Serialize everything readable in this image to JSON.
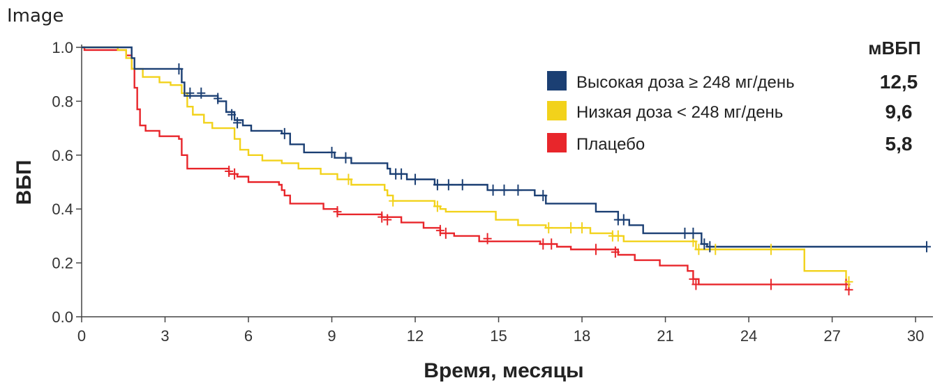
{
  "page_label": "Image",
  "chart_data": {
    "type": "line",
    "title": "",
    "xlabel": "Время, месяцы",
    "ylabel": "ВБП",
    "xlim": [
      0,
      30.5
    ],
    "ylim": [
      0,
      1.0
    ],
    "x_ticks": [
      0,
      3,
      6,
      9,
      12,
      15,
      18,
      21,
      24,
      27,
      30
    ],
    "y_ticks": [
      0.0,
      0.2,
      0.4,
      0.6,
      0.8,
      1.0
    ],
    "y_tick_labels": [
      "0.0",
      "0.2",
      "0.4",
      "0.6",
      "0.8",
      "1.0"
    ],
    "grid": false,
    "legend_header": "мВБП",
    "legend_position": "top-right",
    "series": [
      {
        "name": "Высокая доза ≥ 248 мг/день",
        "median": "12,5",
        "color": "#1b3f73",
        "steps": [
          [
            0,
            1.0
          ],
          [
            1.7,
            1.0
          ],
          [
            1.8,
            0.96
          ],
          [
            1.9,
            0.92
          ],
          [
            3.5,
            0.92
          ],
          [
            3.6,
            0.87
          ],
          [
            3.7,
            0.82
          ],
          [
            4.6,
            0.82
          ],
          [
            4.9,
            0.8
          ],
          [
            5.2,
            0.76
          ],
          [
            5.5,
            0.73
          ],
          [
            5.8,
            0.71
          ],
          [
            6.1,
            0.69
          ],
          [
            7.2,
            0.68
          ],
          [
            7.5,
            0.64
          ],
          [
            7.8,
            0.64
          ],
          [
            8.0,
            0.61
          ],
          [
            9.0,
            0.61
          ],
          [
            9.1,
            0.59
          ],
          [
            9.6,
            0.59
          ],
          [
            9.7,
            0.57
          ],
          [
            10.9,
            0.57
          ],
          [
            11.0,
            0.55
          ],
          [
            11.1,
            0.53
          ],
          [
            11.6,
            0.53
          ],
          [
            11.7,
            0.51
          ],
          [
            12.6,
            0.51
          ],
          [
            12.7,
            0.49
          ],
          [
            14.5,
            0.49
          ],
          [
            14.6,
            0.47
          ],
          [
            16.2,
            0.47
          ],
          [
            16.3,
            0.45
          ],
          [
            16.6,
            0.45
          ],
          [
            16.7,
            0.42
          ],
          [
            18.4,
            0.42
          ],
          [
            18.5,
            0.39
          ],
          [
            19.2,
            0.39
          ],
          [
            19.3,
            0.36
          ],
          [
            19.6,
            0.36
          ],
          [
            19.7,
            0.34
          ],
          [
            20.1,
            0.34
          ],
          [
            20.2,
            0.31
          ],
          [
            22.2,
            0.31
          ],
          [
            22.3,
            0.27
          ],
          [
            22.5,
            0.26
          ],
          [
            30.4,
            0.26
          ]
        ],
        "censors": [
          [
            3.5,
            0.92
          ],
          [
            3.9,
            0.83
          ],
          [
            4.3,
            0.83
          ],
          [
            4.9,
            0.81
          ],
          [
            5.4,
            0.75
          ],
          [
            5.6,
            0.72
          ],
          [
            7.3,
            0.68
          ],
          [
            9.0,
            0.61
          ],
          [
            9.5,
            0.59
          ],
          [
            11.3,
            0.53
          ],
          [
            11.5,
            0.53
          ],
          [
            12.0,
            0.51
          ],
          [
            12.8,
            0.49
          ],
          [
            13.2,
            0.49
          ],
          [
            13.7,
            0.49
          ],
          [
            14.8,
            0.47
          ],
          [
            15.2,
            0.47
          ],
          [
            15.7,
            0.47
          ],
          [
            16.6,
            0.45
          ],
          [
            19.3,
            0.36
          ],
          [
            19.5,
            0.36
          ],
          [
            21.7,
            0.31
          ],
          [
            22.0,
            0.31
          ],
          [
            22.4,
            0.27
          ],
          [
            22.6,
            0.26
          ],
          [
            30.4,
            0.26
          ]
        ]
      },
      {
        "name": "Низкая доза < 248 мг/день",
        "median": "9,6",
        "color": "#f2d21b",
        "steps": [
          [
            0,
            1.0
          ],
          [
            1.3,
            0.99
          ],
          [
            1.6,
            0.96
          ],
          [
            1.8,
            0.92
          ],
          [
            2.2,
            0.89
          ],
          [
            2.8,
            0.87
          ],
          [
            3.2,
            0.86
          ],
          [
            3.6,
            0.83
          ],
          [
            3.8,
            0.78
          ],
          [
            4.0,
            0.75
          ],
          [
            4.4,
            0.72
          ],
          [
            4.7,
            0.7
          ],
          [
            5.4,
            0.7
          ],
          [
            5.5,
            0.66
          ],
          [
            5.7,
            0.62
          ],
          [
            6.0,
            0.6
          ],
          [
            6.5,
            0.58
          ],
          [
            7.2,
            0.57
          ],
          [
            7.8,
            0.55
          ],
          [
            8.6,
            0.53
          ],
          [
            9.2,
            0.51
          ],
          [
            9.6,
            0.51
          ],
          [
            9.7,
            0.49
          ],
          [
            10.8,
            0.49
          ],
          [
            10.9,
            0.47
          ],
          [
            11.0,
            0.45
          ],
          [
            11.2,
            0.43
          ],
          [
            12.6,
            0.43
          ],
          [
            12.7,
            0.41
          ],
          [
            12.9,
            0.4
          ],
          [
            13.1,
            0.39
          ],
          [
            14.8,
            0.39
          ],
          [
            14.9,
            0.36
          ],
          [
            15.6,
            0.36
          ],
          [
            15.7,
            0.34
          ],
          [
            16.6,
            0.34
          ],
          [
            16.7,
            0.33
          ],
          [
            18.2,
            0.33
          ],
          [
            18.3,
            0.31
          ],
          [
            19.0,
            0.31
          ],
          [
            19.1,
            0.3
          ],
          [
            19.4,
            0.3
          ],
          [
            19.5,
            0.28
          ],
          [
            21.9,
            0.28
          ],
          [
            22.1,
            0.25
          ],
          [
            22.4,
            0.25
          ],
          [
            25.9,
            0.25
          ],
          [
            26.0,
            0.17
          ],
          [
            27.4,
            0.17
          ],
          [
            27.5,
            0.13
          ],
          [
            27.6,
            0.13
          ]
        ],
        "censors": [
          [
            9.6,
            0.51
          ],
          [
            11.2,
            0.43
          ],
          [
            12.8,
            0.41
          ],
          [
            16.8,
            0.33
          ],
          [
            17.6,
            0.33
          ],
          [
            18.0,
            0.33
          ],
          [
            19.1,
            0.3
          ],
          [
            19.3,
            0.3
          ],
          [
            22.0,
            0.28
          ],
          [
            22.2,
            0.25
          ],
          [
            22.8,
            0.25
          ],
          [
            24.8,
            0.25
          ],
          [
            27.6,
            0.13
          ]
        ]
      },
      {
        "name": "Плацебо",
        "median": "5,8",
        "color": "#e8262b",
        "steps": [
          [
            0,
            1.0
          ],
          [
            0.1,
            0.99
          ],
          [
            1.6,
            0.97
          ],
          [
            1.8,
            0.92
          ],
          [
            1.9,
            0.85
          ],
          [
            2.0,
            0.77
          ],
          [
            2.1,
            0.71
          ],
          [
            2.3,
            0.69
          ],
          [
            2.8,
            0.67
          ],
          [
            3.5,
            0.66
          ],
          [
            3.6,
            0.6
          ],
          [
            3.8,
            0.55
          ],
          [
            4.0,
            0.55
          ],
          [
            5.2,
            0.55
          ],
          [
            5.3,
            0.53
          ],
          [
            5.6,
            0.52
          ],
          [
            6.0,
            0.5
          ],
          [
            6.6,
            0.5
          ],
          [
            7.1,
            0.49
          ],
          [
            7.2,
            0.47
          ],
          [
            7.3,
            0.45
          ],
          [
            7.5,
            0.42
          ],
          [
            8.6,
            0.42
          ],
          [
            8.7,
            0.4
          ],
          [
            9.1,
            0.4
          ],
          [
            9.2,
            0.38
          ],
          [
            10.6,
            0.38
          ],
          [
            10.8,
            0.37
          ],
          [
            11.3,
            0.37
          ],
          [
            11.5,
            0.35
          ],
          [
            12.2,
            0.35
          ],
          [
            12.3,
            0.33
          ],
          [
            12.8,
            0.33
          ],
          [
            12.9,
            0.31
          ],
          [
            13.3,
            0.31
          ],
          [
            13.4,
            0.3
          ],
          [
            14.2,
            0.3
          ],
          [
            14.3,
            0.28
          ],
          [
            16.3,
            0.28
          ],
          [
            16.5,
            0.27
          ],
          [
            17.0,
            0.27
          ],
          [
            17.1,
            0.26
          ],
          [
            17.5,
            0.26
          ],
          [
            17.6,
            0.25
          ],
          [
            19.1,
            0.25
          ],
          [
            19.3,
            0.23
          ],
          [
            19.8,
            0.23
          ],
          [
            19.9,
            0.21
          ],
          [
            20.7,
            0.21
          ],
          [
            20.8,
            0.19
          ],
          [
            21.7,
            0.19
          ],
          [
            21.8,
            0.17
          ],
          [
            22.0,
            0.14
          ],
          [
            22.2,
            0.12
          ],
          [
            27.5,
            0.12
          ],
          [
            27.6,
            0.1
          ]
        ],
        "censors": [
          [
            5.3,
            0.54
          ],
          [
            5.5,
            0.53
          ],
          [
            9.2,
            0.39
          ],
          [
            10.8,
            0.37
          ],
          [
            11.0,
            0.36
          ],
          [
            12.9,
            0.32
          ],
          [
            13.1,
            0.31
          ],
          [
            14.6,
            0.29
          ],
          [
            16.6,
            0.27
          ],
          [
            16.9,
            0.27
          ],
          [
            18.5,
            0.25
          ],
          [
            19.2,
            0.24
          ],
          [
            22.0,
            0.14
          ],
          [
            22.1,
            0.12
          ],
          [
            24.8,
            0.12
          ],
          [
            27.5,
            0.12
          ],
          [
            27.6,
            0.1
          ]
        ]
      }
    ]
  }
}
